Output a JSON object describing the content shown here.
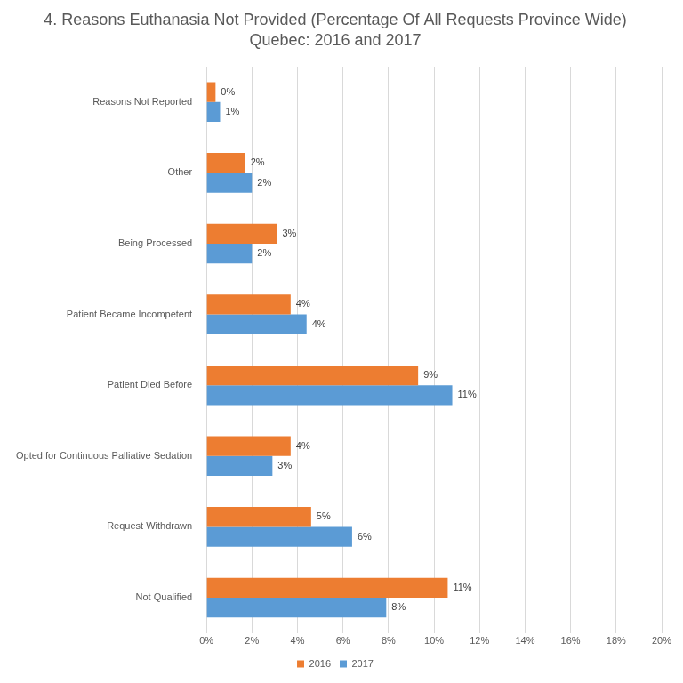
{
  "chart_data": {
    "type": "bar",
    "orientation": "horizontal",
    "title": [
      "4. Reasons Euthanasia Not Provided (Percentage Of All Requests Province Wide)",
      "Quebec: 2016 and 2017"
    ],
    "categories": [
      "Reasons Not Reported",
      "Other",
      "Being Processed",
      "Patient Became Incompetent",
      "Patient Died Before",
      "Opted for Continuous Palliative Sedation",
      "Request Withdrawn",
      "Not Qualified"
    ],
    "series": [
      {
        "name": "2016",
        "color": "#ed7d31",
        "values": [
          0.4,
          1.7,
          3.1,
          3.7,
          9.3,
          3.7,
          4.6,
          10.6
        ],
        "value_labels": [
          "0%",
          "2%",
          "3%",
          "4%",
          "9%",
          "4%",
          "5%",
          "11%"
        ]
      },
      {
        "name": "2017",
        "color": "#5b9bd5",
        "values": [
          0.6,
          2.0,
          2.0,
          4.4,
          10.8,
          2.9,
          6.4,
          7.9
        ],
        "value_labels": [
          "1%",
          "2%",
          "2%",
          "4%",
          "11%",
          "3%",
          "6%",
          "8%"
        ]
      }
    ],
    "xlim": [
      0,
      20
    ],
    "xticks": [
      {
        "value": 0,
        "label": "0%"
      },
      {
        "value": 2,
        "label": "2%"
      },
      {
        "value": 4,
        "label": "4%"
      },
      {
        "value": 6,
        "label": "6%"
      },
      {
        "value": 8,
        "label": "8%"
      },
      {
        "value": 10,
        "label": "10%"
      },
      {
        "value": 12,
        "label": "12%"
      },
      {
        "value": 14,
        "label": "14%"
      },
      {
        "value": 16,
        "label": "16%"
      },
      {
        "value": 18,
        "label": "18%"
      },
      {
        "value": 20,
        "label": "20%"
      }
    ],
    "grid": true,
    "legend": "bottom",
    "data_labels": true
  }
}
